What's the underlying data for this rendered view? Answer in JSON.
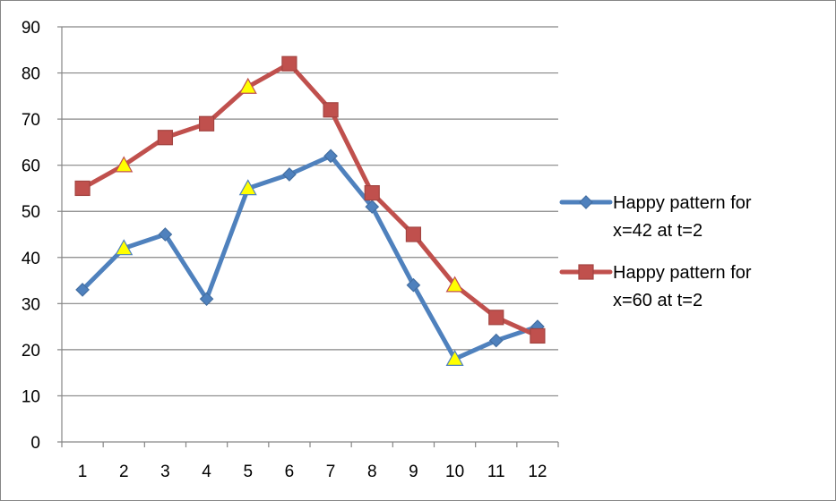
{
  "chart_data": {
    "type": "line",
    "categories": [
      "1",
      "2",
      "3",
      "4",
      "5",
      "6",
      "7",
      "8",
      "9",
      "10",
      "11",
      "12"
    ],
    "ylim": [
      0,
      90
    ],
    "yticks": [
      "0",
      "10",
      "20",
      "30",
      "40",
      "50",
      "60",
      "70",
      "80",
      "90"
    ],
    "grid": "horizontal major gridlines",
    "legend_position": "right",
    "series": [
      {
        "name_lines": [
          "Happy pattern for",
          "x=42 at t=2"
        ],
        "color": "#4F81BD",
        "marker": "diamond",
        "values": [
          33,
          42,
          45,
          31,
          55,
          58,
          62,
          51,
          34,
          18,
          22,
          25
        ],
        "highlighted_points": [
          2,
          5,
          10
        ]
      },
      {
        "name_lines": [
          "Happy pattern for",
          "x=60 at t=2"
        ],
        "color": "#C0504D",
        "marker": "square",
        "values": [
          55,
          60,
          66,
          69,
          77,
          82,
          72,
          54,
          45,
          34,
          27,
          23
        ],
        "highlighted_points": [
          2,
          5,
          10
        ]
      }
    ],
    "highlight_marker": {
      "shape": "triangle",
      "fill": "#FFFF00"
    }
  }
}
